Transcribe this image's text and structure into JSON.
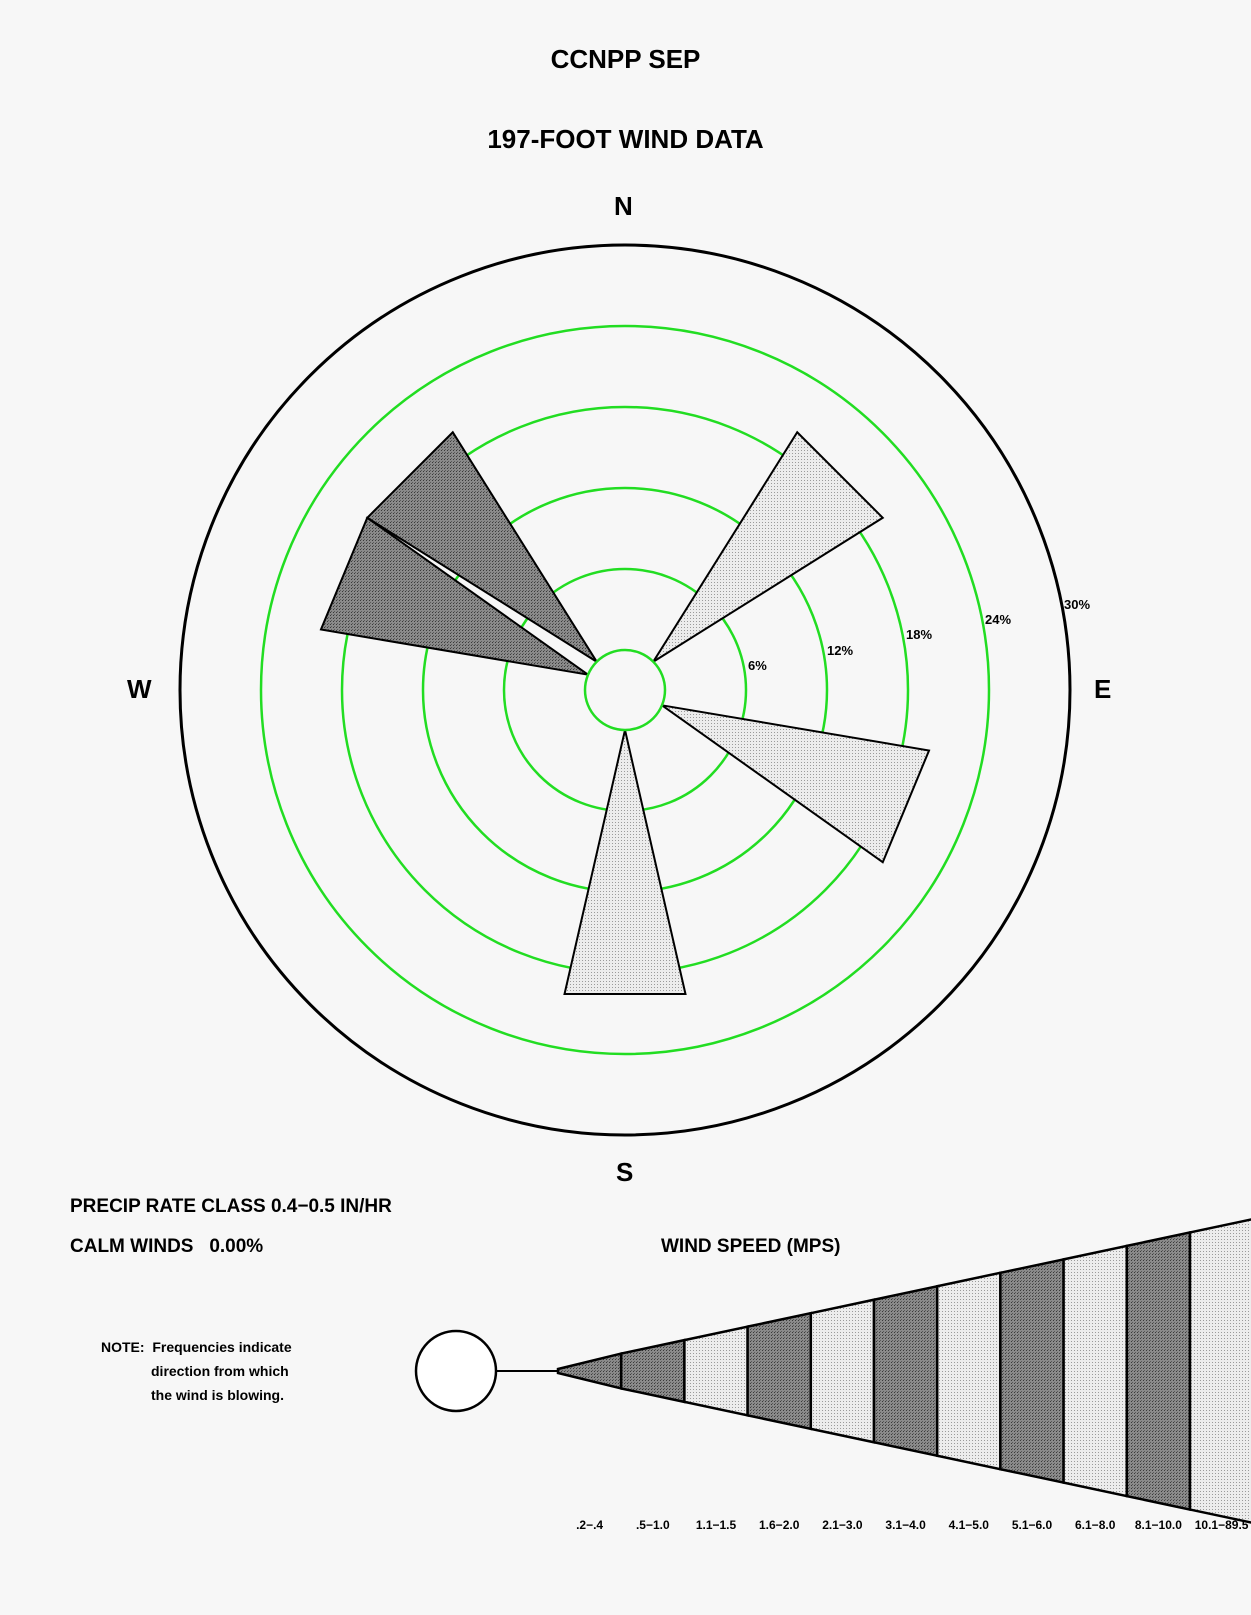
{
  "chart_data": {
    "type": "wind-rose",
    "title": "CCNPP SEP",
    "subtitle": "197-FOOT WIND DATA",
    "compass_labels": {
      "north": "N",
      "east": "E",
      "south": "S",
      "west": "W"
    },
    "ring_labels": [
      "6%",
      "12%",
      "18%",
      "24%",
      "30%"
    ],
    "ring_values": [
      6,
      12,
      18,
      24,
      30
    ],
    "sectors": [
      {
        "direction": "NE",
        "angle_deg": 45,
        "frequency_pct": 20.0,
        "speed_class": "4.1-5.0"
      },
      {
        "direction": "ESE",
        "angle_deg": 112.5,
        "frequency_pct": 20.0,
        "speed_class": "4.1-5.0"
      },
      {
        "direction": "S",
        "angle_deg": 180,
        "frequency_pct": 20.0,
        "speed_class": "4.1-5.0"
      },
      {
        "direction": "WNW",
        "angle_deg": 292.5,
        "frequency_pct": 20.0,
        "speed_class": "3.1-4.0"
      },
      {
        "direction": "NW",
        "angle_deg": 315,
        "frequency_pct": 20.0,
        "speed_class": "3.1-4.0"
      }
    ],
    "precip_rate_class": "PRECIP RATE CLASS 0.4−0.5  IN/HR",
    "calm_winds": "CALM WINDS   0.00%",
    "note_lines": [
      "NOTE:  Frequencies indicate",
      "direction from which",
      "the wind is blowing."
    ],
    "legend_title": "WIND SPEED (MPS)",
    "speed_classes": [
      ".2−.4",
      ".5−1.0",
      "1.1−1.5",
      "1.6−2.0",
      "2.1−3.0",
      "3.1−4.0",
      "4.1−5.0",
      "5.1−6.0",
      "6.1−8.0",
      "8.1−10.0",
      "10.1−89.5"
    ],
    "speed_class_fill": [
      "dark",
      "dark",
      "light",
      "dark",
      "light",
      "dark",
      "light",
      "dark",
      "light",
      "dark",
      "light"
    ],
    "colors": {
      "ring": "#22dd22",
      "outline": "#000000",
      "light_fill": "#e4e4e4",
      "dark_fill": "#7a7a7a",
      "background": "#f7f7f7"
    }
  }
}
